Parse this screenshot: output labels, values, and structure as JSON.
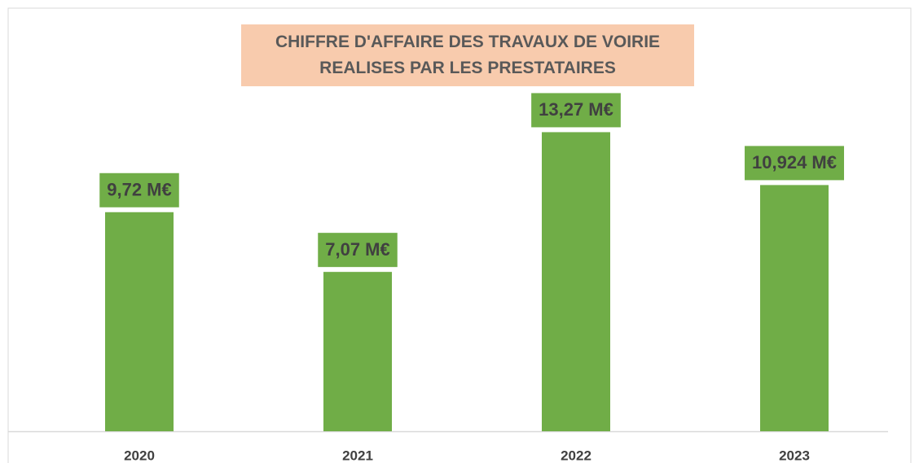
{
  "chart_data": {
    "type": "bar",
    "title": "CHIFFRE D'AFFAIRE DES TRAVAUX DE VOIRIE REALISES PAR LES PRESTATAIRES",
    "categories": [
      "2020",
      "2021",
      "2022",
      "2023"
    ],
    "values": [
      9.72,
      7.07,
      13.27,
      10.924
    ],
    "value_labels": [
      "9,72 M€",
      "7,07 M€",
      "13,27 M€",
      "10,924 M€"
    ],
    "color": "#70ad47"
  }
}
